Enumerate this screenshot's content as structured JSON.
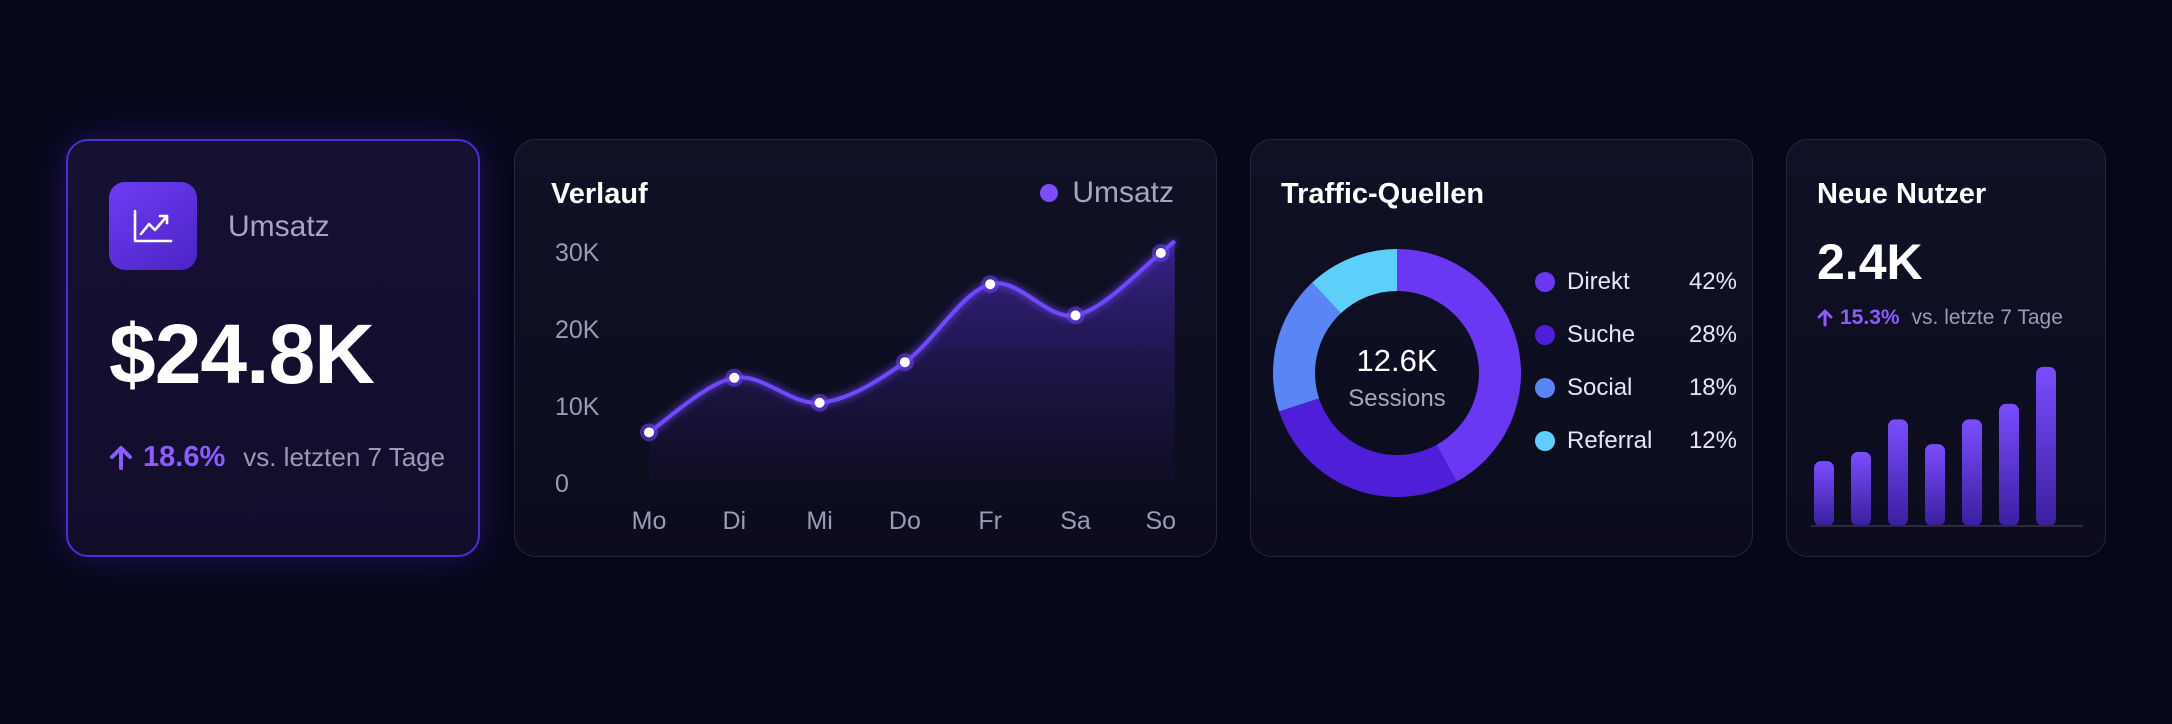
{
  "colors": {
    "background": "#07071a",
    "accent": "#7b4dff",
    "accent_dark": "#4b24c4",
    "muted_text": "#a6a6bf"
  },
  "kpi": {
    "icon": "chart-trend-icon",
    "label": "Umsatz",
    "value": "$24.8K",
    "delta_icon": "arrow-up-icon",
    "delta_pct": "18.6%",
    "delta_note": "vs. letzten 7 Tage"
  },
  "trend": {
    "title": "Verlauf",
    "legend_label": "Umsatz",
    "chart_data": {
      "type": "area",
      "categories": [
        "Mo",
        "Di",
        "Mi",
        "Do",
        "Fr",
        "Sa",
        "So"
      ],
      "series": [
        {
          "name": "Umsatz",
          "values": [
            7000,
            14000,
            10800,
            16000,
            26000,
            22000,
            30000
          ]
        }
      ],
      "y_ticks": [
        "30K",
        "20K",
        "10K",
        "0"
      ],
      "ylim": [
        0,
        30000
      ],
      "grid": false,
      "legend": "top-right"
    }
  },
  "traffic": {
    "title": "Traffic-Quellen",
    "center_value": "12.6K",
    "center_label": "Sessions",
    "chart_data": {
      "type": "pie",
      "donut": true,
      "labels": [
        "Direkt",
        "Suche",
        "Social",
        "Referral"
      ],
      "values": [
        42,
        28,
        18,
        12
      ],
      "display_values": [
        "42%",
        "28%",
        "18%",
        "12%"
      ],
      "colors": [
        "#6a38f2",
        "#4f1ed9",
        "#5a86f5",
        "#5ecff8"
      ],
      "legend": "right"
    }
  },
  "users": {
    "title": "Neue Nutzer",
    "value": "2.4K",
    "delta_icon": "arrow-up-icon",
    "delta_pct": "15.3%",
    "delta_note": "vs. letzte 7 Tage",
    "chart_data": {
      "type": "bar",
      "values": [
        42,
        48,
        69,
        53,
        69,
        79,
        103
      ],
      "ylim": [
        0,
        110
      ]
    }
  }
}
